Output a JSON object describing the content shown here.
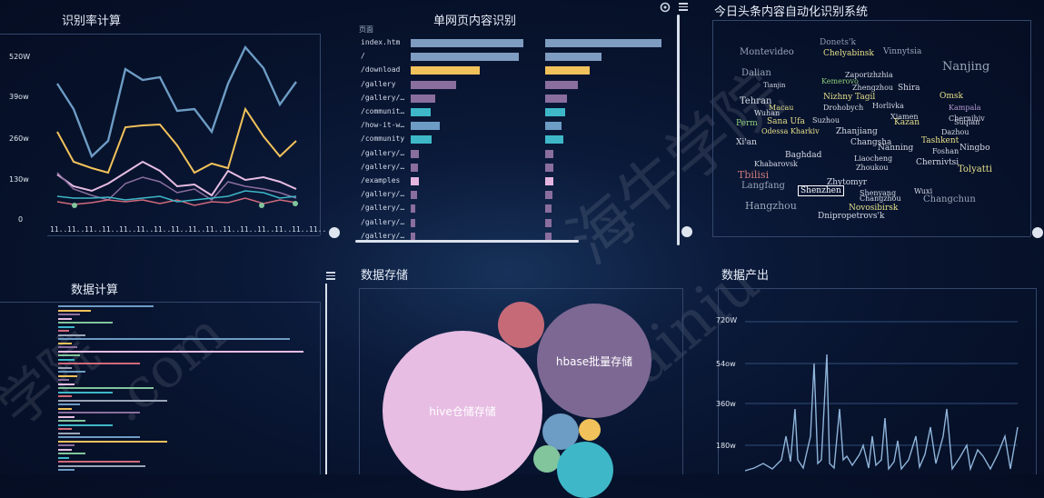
{
  "panels": {
    "recognition": {
      "title": "识别率计算",
      "y_ticks": [
        "520W",
        "39ow",
        "260w",
        "130w",
        "0"
      ],
      "x_ticks": [
        "11..",
        "11..",
        "11..",
        "11..",
        "11..",
        "11..",
        "11..",
        "11..",
        "11..",
        "11..",
        "11..",
        "11..",
        "11..",
        "11..",
        "11..",
        "11.."
      ]
    },
    "single_page": {
      "title": "单网页内容识别",
      "column_header": "页面",
      "rows": [
        {
          "label": "index.htm",
          "a": 0.92,
          "b": 0.95,
          "color": "#7f9cc1"
        },
        {
          "label": "/",
          "a": 0.88,
          "b": 0.46,
          "color": "#7f9cc1"
        },
        {
          "label": "/download",
          "a": 0.56,
          "b": 0.36,
          "color": "#f1c25b"
        },
        {
          "label": "/gallery",
          "a": 0.37,
          "b": 0.27,
          "color": "#8a6e9e"
        },
        {
          "label": "/gallery/…",
          "a": 0.2,
          "b": 0.18,
          "color": "#8a6e9e"
        },
        {
          "label": "/communit…",
          "a": 0.16,
          "b": 0.16,
          "color": "#3eb8c8"
        },
        {
          "label": "/how-it-w…",
          "a": 0.24,
          "b": 0.13,
          "color": "#6d9cc4"
        },
        {
          "label": "/community",
          "a": 0.17,
          "b": 0.15,
          "color": "#3eb8c8"
        },
        {
          "label": "/gallery/…",
          "a": 0.07,
          "b": 0.07,
          "color": "#8a6e9e"
        },
        {
          "label": "/gallery/…",
          "a": 0.06,
          "b": 0.07,
          "color": "#8a6e9e"
        },
        {
          "label": "/examples",
          "a": 0.07,
          "b": 0.07,
          "color": "#e3b5df"
        },
        {
          "label": "/gallery/…",
          "a": 0.05,
          "b": 0.06,
          "color": "#8a6e9e"
        },
        {
          "label": "/gallery/…",
          "a": 0.04,
          "b": 0.05,
          "color": "#8a6e9e"
        },
        {
          "label": "/gallery/…",
          "a": 0.04,
          "b": 0.05,
          "color": "#8a6e9e"
        },
        {
          "label": "/gallery/…",
          "a": 0.04,
          "b": 0.05,
          "color": "#8a6e9e"
        }
      ]
    },
    "toutiao": {
      "title": "今日头条内容自动化识别系统",
      "words": [
        {
          "t": "Montevideo",
          "c": "#9aa6b8"
        },
        {
          "t": "Donets'k",
          "c": "#8c98ac"
        },
        {
          "t": "Vinnytsia",
          "c": "#9aa6b8"
        },
        {
          "t": "Chelyabinsk",
          "c": "#e6e08a"
        },
        {
          "t": "Nanjing",
          "c": "#9aa6b8"
        },
        {
          "t": "Dalian",
          "c": "#9aa6b8"
        },
        {
          "t": "Zaporizhzhia",
          "c": "#d6dbe6"
        },
        {
          "t": "Kemerovo",
          "c": "#8fd07a"
        },
        {
          "t": "Tianjin",
          "c": "#d6dbe6"
        },
        {
          "t": "Zhengzhou",
          "c": "#d6dbe6"
        },
        {
          "t": "Shira",
          "c": "#d6dbe6"
        },
        {
          "t": "Omsk",
          "c": "#e6e08a"
        },
        {
          "t": "Tehran",
          "c": "#d6dbe6"
        },
        {
          "t": "Nizhny Tagil",
          "c": "#e6e08a"
        },
        {
          "t": "Macau",
          "c": "#e6e08a"
        },
        {
          "t": "Drohobych",
          "c": "#d6dbe6"
        },
        {
          "t": "Horlivka",
          "c": "#d6dbe6"
        },
        {
          "t": "Kampala",
          "c": "#b79cd6"
        },
        {
          "t": "Wuhan",
          "c": "#d6dbe6"
        },
        {
          "t": "Xiamen",
          "c": "#d6dbe6"
        },
        {
          "t": "Chernihiv",
          "c": "#d6dbe6"
        },
        {
          "t": "Perm",
          "c": "#8fd07a"
        },
        {
          "t": "Sana Ufa",
          "c": "#e6e08a"
        },
        {
          "t": "Suzhou",
          "c": "#d6dbe6"
        },
        {
          "t": "Kazan",
          "c": "#e6e08a"
        },
        {
          "t": "Suqian",
          "c": "#d6dbe6"
        },
        {
          "t": "Odessa Kharkiv",
          "c": "#e6e08a"
        },
        {
          "t": "Zhanjiang",
          "c": "#d6dbe6"
        },
        {
          "t": "Dazhou",
          "c": "#d6dbe6"
        },
        {
          "t": "Xi'an",
          "c": "#d6dbe6"
        },
        {
          "t": "Changsha",
          "c": "#d6dbe6"
        },
        {
          "t": "Tashkent",
          "c": "#e6e08a"
        },
        {
          "t": "Ningbo",
          "c": "#d6dbe6"
        },
        {
          "t": "Baghdad",
          "c": "#d6dbe6"
        },
        {
          "t": "Nanning",
          "c": "#d6dbe6"
        },
        {
          "t": "Foshan",
          "c": "#d6dbe6"
        },
        {
          "t": "Khabarovsk",
          "c": "#d6dbe6"
        },
        {
          "t": "Liaocheng",
          "c": "#d6dbe6"
        },
        {
          "t": "Chernivtsi",
          "c": "#d6dbe6"
        },
        {
          "t": "Tbilisi",
          "c": "#d07a7a"
        },
        {
          "t": "Zhoukou",
          "c": "#d6dbe6"
        },
        {
          "t": "Tolyatti",
          "c": "#e6e08a"
        },
        {
          "t": "Langfang",
          "c": "#9aa6b8"
        },
        {
          "t": "Zhytomyr",
          "c": "#d6dbe6"
        },
        {
          "t": "Shenzhen",
          "c": "#ffffff"
        },
        {
          "t": "Shenyang",
          "c": "#d6dbe6"
        },
        {
          "t": "Wuxi",
          "c": "#d6dbe6"
        },
        {
          "t": "Changchun",
          "c": "#9aa6b8"
        },
        {
          "t": "Hangzhou",
          "c": "#9aa6b8"
        },
        {
          "t": "Changzhou",
          "c": "#d6dbe6"
        },
        {
          "t": "Novosibirsk",
          "c": "#e6e08a"
        },
        {
          "t": "Dnipropetrovs'k",
          "c": "#d6dbe6"
        }
      ]
    },
    "compute": {
      "title": "数据计算"
    },
    "storage": {
      "title": "数据存储",
      "bubbles": [
        {
          "label": "hive仓储存储",
          "color": "#e7bde3"
        },
        {
          "label": "hbase批量存储",
          "color": "#7d6894"
        },
        {
          "label": "",
          "color": "#c66a78"
        },
        {
          "label": "",
          "color": "#6d9cc4"
        },
        {
          "label": "",
          "color": "#f1c25b"
        },
        {
          "label": "",
          "color": "#82c49c"
        },
        {
          "label": "",
          "color": "#3eb8c8"
        }
      ]
    },
    "output": {
      "title": "数据产出",
      "y_ticks": [
        "720W",
        "54ow",
        "360w",
        "180w"
      ]
    }
  },
  "watermark": [
    "学院",
    "海牛学院",
    "hainiu",
    ".com"
  ]
}
